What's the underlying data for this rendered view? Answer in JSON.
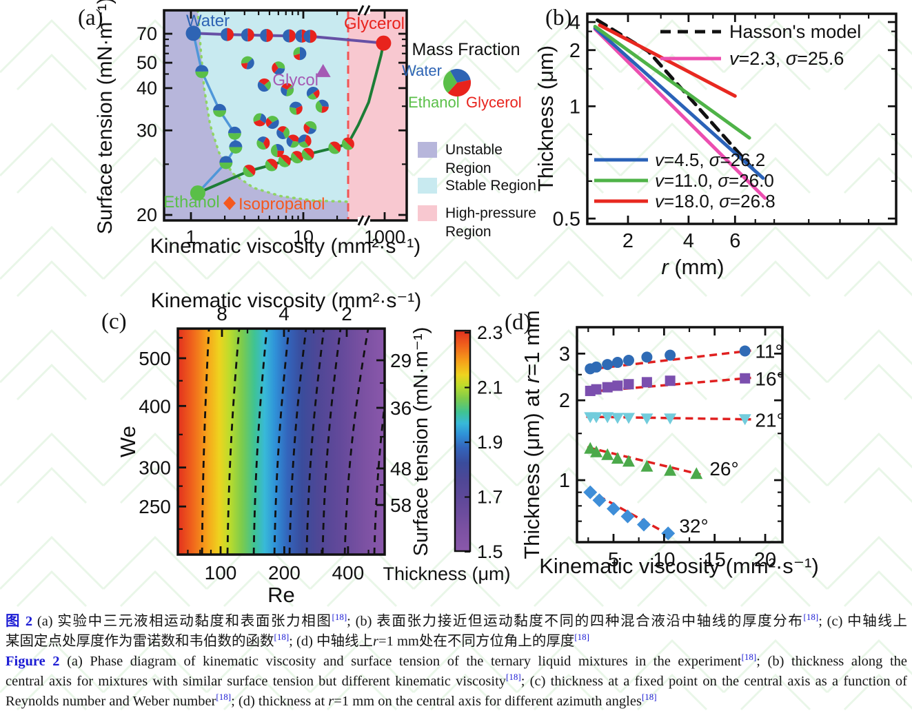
{
  "figure": {
    "panels": [
      {
        "tag": "(a)"
      },
      {
        "tag": "(b)"
      },
      {
        "tag": "(c)"
      },
      {
        "tag": "(d)"
      }
    ]
  },
  "colors": {
    "water": "#2e64b4",
    "ethanol": "#5abf48",
    "glycerol": "#e8231d",
    "glycol": "#a55ab4",
    "isopropanol": "#f4581f",
    "region_unstable": "#b7b6db",
    "region_stable": "#c8eaf0",
    "region_high_pressure": "#f8c8d0",
    "line_water_ethanol": "#4f97d9",
    "line_ethanol_glycerol": "#1d7d36",
    "line_water_glycerol": "#6650a5",
    "boundary_dotted": "#90d464",
    "pressure_dashed": "#f05555",
    "hasson": "#111111",
    "pink": "#ec4fb0",
    "blue": "#2a62b8",
    "green": "#4fb348",
    "red": "#e82820",
    "trend": "#e02020",
    "deg11": "#2f6bb5",
    "deg16": "#7b4fae",
    "deg21": "#72ccdc",
    "deg26": "#4ba94a",
    "deg32": "#3e8ed8",
    "caption_blue": "#1b1bd4",
    "watermark": "#cdeccb",
    "axis": "#111111"
  },
  "chart_data": [
    {
      "id": "a",
      "type": "scatter",
      "xlabel": "Kinematic viscosity (mm²·s⁻¹)",
      "ylabel": "Surface tension (mN·m⁻¹)",
      "x_ticks": [
        "1",
        "10",
        "1000"
      ],
      "y_ticks": [
        "20",
        "30",
        "40",
        "50",
        "70"
      ],
      "x_scale": "log with axis break before 1000",
      "y_scale": "reciprocal",
      "regions": [
        {
          "name": "unstable",
          "label_lines": [
            "Unstable",
            "Region"
          ]
        },
        {
          "name": "stable",
          "label_lines": [
            "Stable Region"
          ]
        },
        {
          "name": "high_pressure",
          "label_lines": [
            "High-pressure",
            "Region"
          ]
        }
      ],
      "legend": {
        "title": "Mass Fraction",
        "pie_labels": [
          "Water",
          "Ethanol",
          "Glycerol"
        ],
        "pie_fractions": [
          0.3,
          0.3,
          0.4
        ]
      },
      "boundary_stable": [
        [
          1.15,
          103
        ],
        [
          1.22,
          58
        ],
        [
          1.31,
          40
        ],
        [
          1.48,
          31
        ],
        [
          1.78,
          26.5
        ],
        [
          2.36,
          23.9
        ],
        [
          3.6,
          22.4
        ],
        [
          6.3,
          21.6
        ],
        [
          12.3,
          21.2
        ],
        [
          25,
          21.1
        ]
      ],
      "pressure_boundary_x": 25,
      "series": {
        "water_ethanol": {
          "points": [
            [
              1.05,
              70.5
            ],
            [
              1.25,
              46
            ],
            [
              1.8,
              34
            ],
            [
              2.45,
              29.5
            ],
            [
              2.5,
              27.3
            ],
            [
              2.05,
              25.2
            ],
            [
              1.15,
              21.9
            ]
          ],
          "pie_idx": [
            1,
            2,
            3,
            4,
            5
          ]
        },
        "ethanol_glycerol": {
          "points": [
            [
              1.15,
              21.9
            ],
            [
              3.3,
              24.2
            ],
            [
              5.2,
              24.9
            ],
            [
              6.8,
              25.4
            ],
            [
              8.8,
              25.9
            ],
            [
              11,
              26.3
            ],
            [
              19,
              27.2
            ],
            [
              25,
              27.8
            ],
            [
              70,
              31
            ],
            [
              200,
              36
            ],
            [
              400,
              44
            ],
            [
              700,
              54
            ],
            [
              900,
              62
            ]
          ],
          "pie_idx": [
            1,
            2,
            3,
            4,
            5,
            6,
            7
          ]
        },
        "water_glycerol": {
          "points": [
            [
              1.05,
              70.5
            ],
            [
              2.1,
              69.3
            ],
            [
              3.2,
              68.8
            ],
            [
              4.7,
              68.4
            ],
            [
              7.5,
              68
            ],
            [
              9.7,
              67.8
            ],
            [
              11.5,
              67.6
            ],
            [
              900,
              62
            ]
          ],
          "pie_idx": [
            1,
            2,
            3,
            4,
            5,
            6
          ]
        },
        "ternary_mixtures": [
          {
            "v": 9.3,
            "s": 55,
            "f": [
              0.5,
              0.3,
              0.2
            ]
          },
          {
            "v": 3.2,
            "s": 50,
            "f": [
              0.4,
              0.4,
              0.2
            ]
          },
          {
            "v": 6.0,
            "s": 47.5,
            "f": [
              0.35,
              0.35,
              0.3
            ]
          },
          {
            "v": 4.5,
            "s": 41,
            "f": [
              0.45,
              0.25,
              0.3
            ]
          },
          {
            "v": 7.2,
            "s": 39.5,
            "f": [
              0.3,
              0.4,
              0.3
            ]
          },
          {
            "v": 12.2,
            "s": 38.5,
            "f": [
              0.5,
              0.25,
              0.25
            ]
          },
          {
            "v": 8.6,
            "s": 34.5,
            "f": [
              0.4,
              0.3,
              0.3
            ]
          },
          {
            "v": 14.7,
            "s": 35,
            "f": [
              0.35,
              0.4,
              0.25
            ]
          },
          {
            "v": 4.1,
            "s": 32,
            "f": [
              0.3,
              0.35,
              0.35
            ]
          },
          {
            "v": 5.3,
            "s": 31.5,
            "f": [
              0.45,
              0.3,
              0.25
            ]
          },
          {
            "v": 11.5,
            "s": 30.5,
            "f": [
              0.25,
              0.45,
              0.3
            ]
          },
          {
            "v": 6.6,
            "s": 29.6,
            "f": [
              0.4,
              0.35,
              0.25
            ]
          },
          {
            "v": 8.1,
            "s": 28.2,
            "f": [
              0.3,
              0.3,
              0.4
            ]
          },
          {
            "v": 10.3,
            "s": 28.2,
            "f": [
              0.35,
              0.3,
              0.35
            ]
          },
          {
            "v": 4.4,
            "s": 27.9,
            "f": [
              0.25,
              0.4,
              0.35
            ]
          },
          {
            "v": 5.9,
            "s": 26.8,
            "f": [
              0.3,
              0.45,
              0.25
            ]
          }
        ]
      },
      "points": {
        "water": [
          1.05,
          70.5
        ],
        "ethanol": [
          1.15,
          21.9
        ],
        "glycerol": [
          900,
          62
        ],
        "glycol": [
          15,
          46
        ]
      },
      "annotations": {
        "water": "Water",
        "ethanol": "Ethanol",
        "glycerol": "Glycerol",
        "glycol": "Glycol",
        "isopropanol": "Isopropanol"
      }
    },
    {
      "id": "b",
      "type": "line",
      "xlabel": "{i}r{/i} (mm)",
      "ylabel": "Thickness (μm)",
      "x_ticks": [
        "2",
        "4",
        "6"
      ],
      "y_ticks": [
        "4",
        "2",
        "1",
        "0.5"
      ],
      "series": [
        {
          "name": "Hasson's model",
          "style": "dashed",
          "color_key": "hasson",
          "points": [
            [
              1.25,
              4.3
            ],
            [
              2.6,
              1.95
            ],
            [
              6.9,
              0.64
            ]
          ]
        },
        {
          "name": "{i}v{/i}=2.3, {i}σ{/i}=25.6",
          "style": "solid",
          "color_key": "pink",
          "points": [
            [
              1.2,
              3.2
            ],
            [
              7.5,
              0.55
            ]
          ]
        },
        {
          "name": "{i}v{/i}=4.5, {i}σ{/i}=26.2",
          "style": "solid",
          "color_key": "blue",
          "points": [
            [
              1.2,
              3.3
            ],
            [
              7.4,
              0.61
            ]
          ]
        },
        {
          "name": "{i}v{/i}=11.0, {i}σ{/i}=26.0",
          "style": "solid",
          "color_key": "green",
          "points": [
            [
              1.2,
              3.45
            ],
            [
              6.7,
              0.78
            ]
          ]
        },
        {
          "name": "{i}v{/i}=18.0, {i}σ{/i}=26.8",
          "style": "solid",
          "color_key": "red",
          "points": [
            [
              1.3,
              3.6
            ],
            [
              6.0,
              1.1
            ]
          ]
        }
      ]
    },
    {
      "id": "c",
      "type": "heatmap",
      "xlabel": "Re",
      "ylabel": "We",
      "x_ticks": [
        "100",
        "200",
        "400"
      ],
      "y_ticks": [
        "500",
        "400",
        "300",
        "250"
      ],
      "top_axis_label": "Kinematic viscosity (mm²·s⁻¹)",
      "top_ticks": [
        "8",
        "4",
        "2"
      ],
      "right_axis_label": "Surface tension (mN·m⁻¹)",
      "right_ticks": [
        "29",
        "36",
        "48",
        "58"
      ],
      "colorbar": {
        "title": "Thickness (μm)",
        "ticks": [
          "2.3",
          "2.1",
          "1.9",
          "1.7",
          "1.5"
        ],
        "min": 1.5,
        "max": 2.3
      },
      "colormap": [
        "#e2301e",
        "#f0641c",
        "#f6a21a",
        "#eed31f",
        "#bcdc2c",
        "#7ccb4d",
        "#3fc393",
        "#38b9d8",
        "#2f92d8",
        "#3365bc",
        "#3a4c9c",
        "#4f4796",
        "#62499a",
        "#7b51a2",
        "#8a58ab"
      ],
      "colormap_offsets": [
        0,
        0.07,
        0.14,
        0.2,
        0.25,
        0.31,
        0.37,
        0.42,
        0.47,
        0.53,
        0.6,
        0.68,
        0.78,
        0.9,
        1
      ],
      "contours_base_frac": [
        0.117,
        0.24,
        0.367,
        0.467,
        0.54,
        0.623,
        0.7,
        0.807,
        0.95
      ],
      "contours_top_dx": [
        10,
        17,
        19,
        21,
        24,
        25,
        26,
        34,
        30
      ]
    },
    {
      "id": "d",
      "type": "scatter",
      "xlabel": "Kinematic viscosity (mm²·s⁻¹)",
      "ylabel": "Thickness (μm) at {i}r{/i}=1 mm",
      "x_ticks": [
        "5",
        "10",
        "15",
        "20"
      ],
      "y_ticks": [
        "1",
        "2",
        "3"
      ],
      "series": [
        {
          "label": "11°",
          "marker": "circle",
          "color_key": "deg11",
          "x": [
            2.7,
            3.3,
            4.4,
            5.4,
            6.5,
            8.3,
            10.6,
            18
          ],
          "y": [
            2.63,
            2.67,
            2.73,
            2.78,
            2.83,
            2.91,
            2.96,
            3.07
          ],
          "trend": [
            [
              2.3,
              2.61
            ],
            [
              18.6,
              3.08
            ]
          ],
          "label_at": [
            19,
            3.05
          ]
        },
        {
          "label": "16°",
          "marker": "square",
          "color_key": "deg16",
          "x": [
            2.7,
            3.3,
            4.4,
            5.4,
            6.5,
            8.3,
            10.6,
            18
          ],
          "y": [
            2.17,
            2.2,
            2.24,
            2.27,
            2.3,
            2.34,
            2.37,
            2.42
          ],
          "trend": [
            [
              2.3,
              2.15
            ],
            [
              18.6,
              2.43
            ]
          ],
          "label_at": [
            19,
            2.4
          ]
        },
        {
          "label": "21°",
          "marker": "triangle-down",
          "color_key": "deg21",
          "x": [
            2.7,
            3.3,
            4.4,
            5.4,
            6.5,
            8.3,
            10.6,
            18
          ],
          "y": [
            1.73,
            1.73,
            1.73,
            1.72,
            1.72,
            1.71,
            1.71,
            1.7
          ],
          "trend": [
            [
              2.3,
              1.735
            ],
            [
              18.6,
              1.695
            ]
          ],
          "label_at": [
            19,
            1.68
          ]
        },
        {
          "label": "26°",
          "marker": "triangle-up",
          "color_key": "deg26",
          "x": [
            2.7,
            3.3,
            4.4,
            5.4,
            6.5,
            8.3,
            10.6,
            13.2
          ],
          "y": [
            1.32,
            1.28,
            1.25,
            1.21,
            1.18,
            1.13,
            1.09,
            1.06
          ],
          "trend": [
            [
              2.4,
              1.33
            ],
            [
              13.6,
              1.05
            ]
          ],
          "label_at": [
            14.5,
            1.1
          ]
        },
        {
          "label": "32°",
          "marker": "diamond",
          "color_key": "deg32",
          "x": [
            2.7,
            3.6,
            5.0,
            6.4,
            8.0,
            10.4
          ],
          "y": [
            0.9,
            0.84,
            0.78,
            0.73,
            0.68,
            0.63
          ],
          "trend": [
            [
              2.4,
              0.92
            ],
            [
              10.9,
              0.61
            ]
          ],
          "label_at": [
            11.5,
            0.67
          ]
        }
      ]
    }
  ],
  "caption": {
    "lines": [
      {
        "justify": true,
        "segs": [
          {
            "t": "图 2",
            "b": 1,
            "bl": 1
          },
          {
            "t": "  (a) 实验中三元液相运动黏度和表面张力相图"
          },
          {
            "t": "[18]",
            "sup": 1,
            "bl": 1
          },
          {
            "t": "; (b) 表面张力接近但运动黏度不同的四种混合液沿中轴线的厚度分布"
          },
          {
            "t": "[18]",
            "sup": 1,
            "bl": 1
          },
          {
            "t": "; (c) 中轴线上"
          }
        ]
      },
      {
        "segs": [
          {
            "t": "某固定点处厚度作为雷诺数和韦伯数的函数"
          },
          {
            "t": "[18]",
            "sup": 1,
            "bl": 1
          },
          {
            "t": "; (d) 中轴线上"
          },
          {
            "t": "r",
            "i": 1
          },
          {
            "t": "=1 mm处在不同方位角上的厚度"
          },
          {
            "t": "[18]",
            "sup": 1,
            "bl": 1
          }
        ]
      },
      {
        "justify": true,
        "segs": [
          {
            "t": "Figure 2",
            "b": 1,
            "bl": 1
          },
          {
            "t": "   (a) Phase diagram of kinematic viscosity and surface tension of the ternary liquid mixtures in the experiment"
          },
          {
            "t": "[18]",
            "sup": 1,
            "bl": 1
          },
          {
            "t": "; (b) thickness along the"
          }
        ]
      },
      {
        "justify": true,
        "segs": [
          {
            "t": "central axis for mixtures with similar surface tension but different kinematic viscosity"
          },
          {
            "t": "[18]",
            "sup": 1,
            "bl": 1
          },
          {
            "t": "; (c) thickness at a fixed point on the central axis as a function of"
          }
        ]
      },
      {
        "segs": [
          {
            "t": "Reynolds number and Weber number"
          },
          {
            "t": "[18]",
            "sup": 1,
            "bl": 1
          },
          {
            "t": "; (d) thickness at "
          },
          {
            "t": "r",
            "i": 1
          },
          {
            "t": "=1 mm on the central axis for different azimuth angles"
          },
          {
            "t": "[18]",
            "sup": 1,
            "bl": 1
          }
        ]
      }
    ]
  }
}
